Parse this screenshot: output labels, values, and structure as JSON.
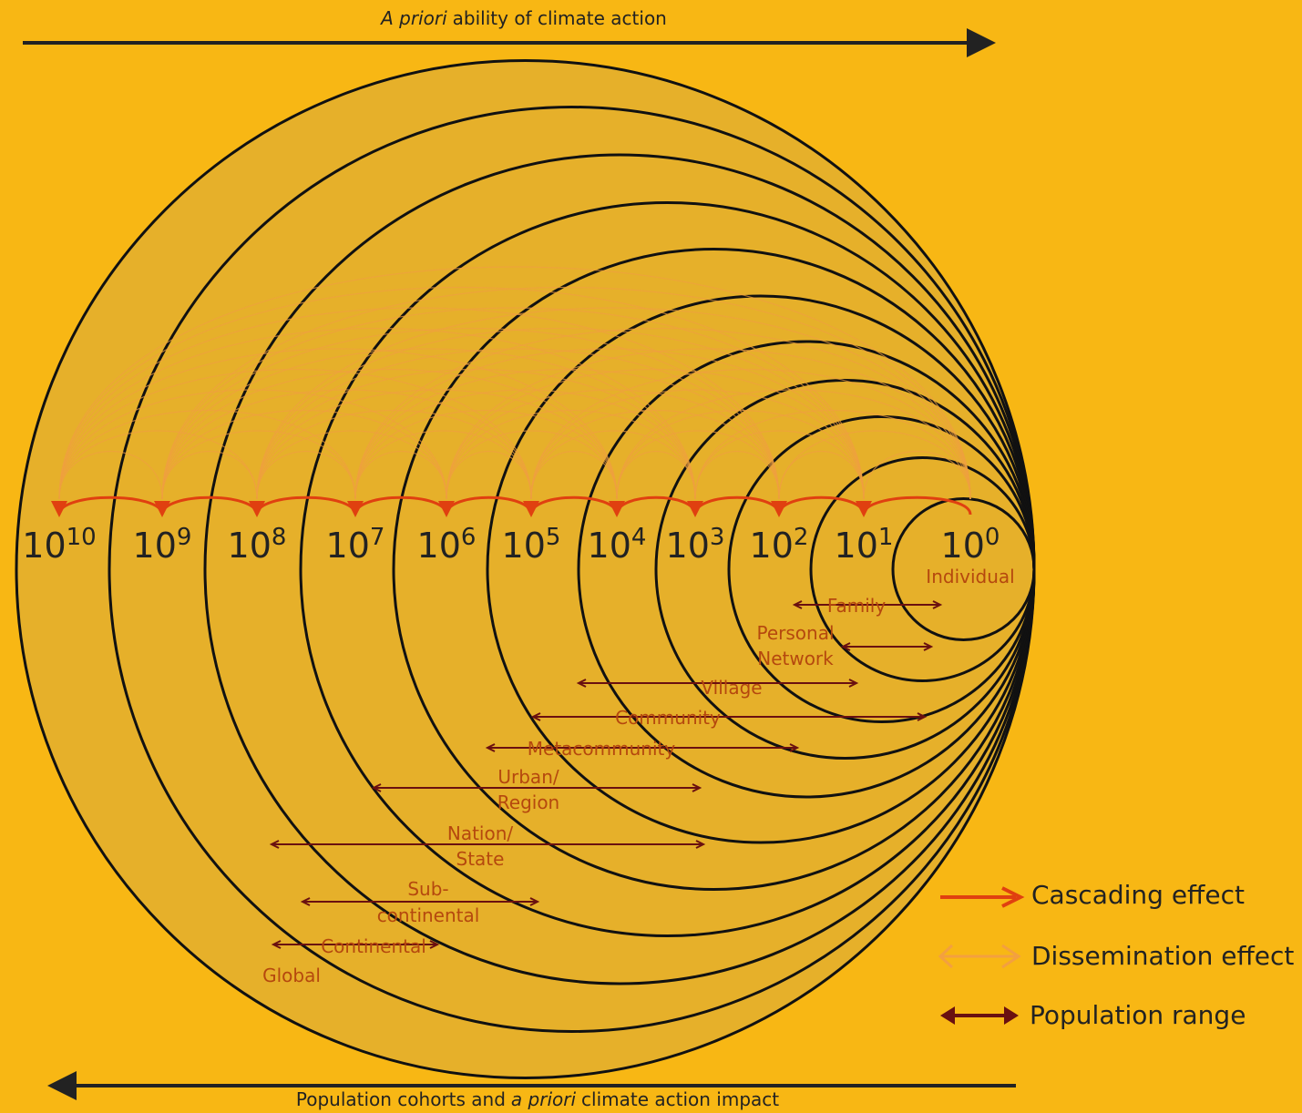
{
  "header": {
    "emphasis": "A priori",
    "text": "ability of climate action"
  },
  "footer": {
    "before": "Population cohorts and",
    "emphasis": "a priori",
    "after": "climate action impact"
  },
  "scales": [
    {
      "base": "10",
      "exponent": "10"
    },
    {
      "base": "10",
      "exponent": "9"
    },
    {
      "base": "10",
      "exponent": "8"
    },
    {
      "base": "10",
      "exponent": "7"
    },
    {
      "base": "10",
      "exponent": "6"
    },
    {
      "base": "10",
      "exponent": "5"
    },
    {
      "base": "10",
      "exponent": "4"
    },
    {
      "base": "10",
      "exponent": "3"
    },
    {
      "base": "10",
      "exponent": "2"
    },
    {
      "base": "10",
      "exponent": "1"
    },
    {
      "base": "10",
      "exponent": "0"
    }
  ],
  "individual": "Individual",
  "ranges": [
    {
      "lines": [
        "Family"
      ]
    },
    {
      "lines": [
        "Personal",
        "Network"
      ]
    },
    {
      "lines": [
        "Village"
      ]
    },
    {
      "lines": [
        "Community"
      ]
    },
    {
      "lines": [
        "Metacommunity"
      ]
    },
    {
      "lines": [
        "Urban/",
        "Region"
      ]
    },
    {
      "lines": [
        "Nation/",
        "State"
      ]
    },
    {
      "lines": [
        "Sub-",
        "continental"
      ]
    },
    {
      "lines": [
        "Continental"
      ]
    },
    {
      "lines": [
        "Global"
      ]
    }
  ],
  "legend": [
    {
      "label": "Cascading effect"
    },
    {
      "label": "Dissemination effect"
    },
    {
      "label": "Population range"
    }
  ]
}
